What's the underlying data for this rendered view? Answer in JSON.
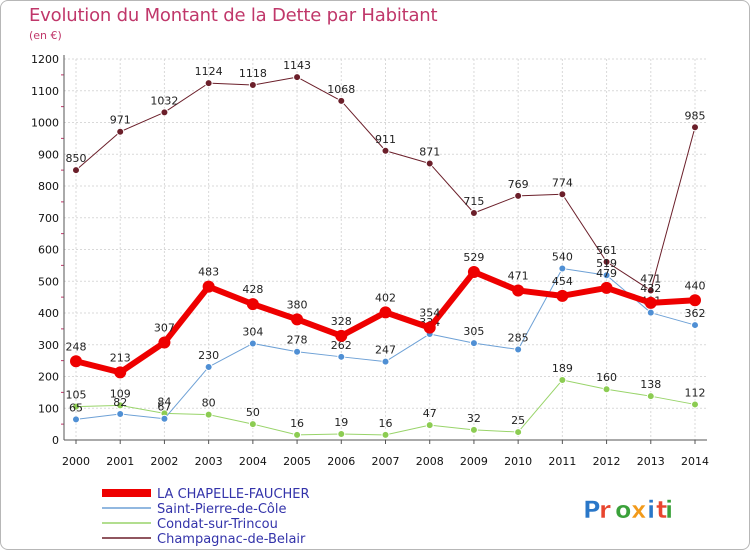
{
  "chart_title": "Evolution du Montant de la Dette par Habitant",
  "chart_subtitle": "(en €)",
  "logo_text": "Proxiti",
  "colors": {
    "grid": "#d9d9d9",
    "axis": "#555555",
    "minor_tick": "#c0376a"
  },
  "chart_data": {
    "type": "line",
    "title": "Evolution du Montant de la Dette par Habitant",
    "subtitle": "(en €)",
    "xlabel": "",
    "ylabel": "",
    "ylim": [
      0,
      1200
    ],
    "yticks": [
      0,
      100,
      200,
      300,
      400,
      500,
      600,
      700,
      800,
      900,
      1000,
      1100,
      1200
    ],
    "x": [
      "2000",
      "2001",
      "2002",
      "2003",
      "2004",
      "2005",
      "2006",
      "2007",
      "2008",
      "2009",
      "2010",
      "2011",
      "2012",
      "2013",
      "2014"
    ],
    "grid": true,
    "legend_position": "bottom-left",
    "series": [
      {
        "name": "Champagnac-de-Belair",
        "color": "#6b1f2a",
        "line_width": 1,
        "marker_color": "#6b1f2a",
        "values": [
          850,
          971,
          1032,
          1124,
          1118,
          1143,
          1068,
          911,
          871,
          715,
          769,
          774,
          561,
          471,
          985
        ]
      },
      {
        "name": "Condat-sur-Trincou",
        "color": "#99d46a",
        "line_width": 1,
        "marker_color": "#8ccc52",
        "values": [
          105,
          109,
          84,
          80,
          50,
          16,
          19,
          16,
          47,
          32,
          25,
          189,
          160,
          138,
          112
        ]
      },
      {
        "name": "Saint-Pierre-de-Côle",
        "color": "#6ea1d6",
        "line_width": 1,
        "marker_color": "#4f8fd4",
        "values": [
          65,
          82,
          67,
          230,
          304,
          278,
          262,
          247,
          334,
          305,
          285,
          540,
          519,
          401,
          362
        ]
      },
      {
        "name": "LA CHAPELLE-FAUCHER",
        "color": "#ee0000",
        "line_width": 6,
        "marker_color": "#ee0000",
        "values": [
          248,
          213,
          307,
          483,
          428,
          380,
          328,
          402,
          354,
          529,
          471,
          454,
          479,
          432,
          440
        ]
      }
    ]
  }
}
